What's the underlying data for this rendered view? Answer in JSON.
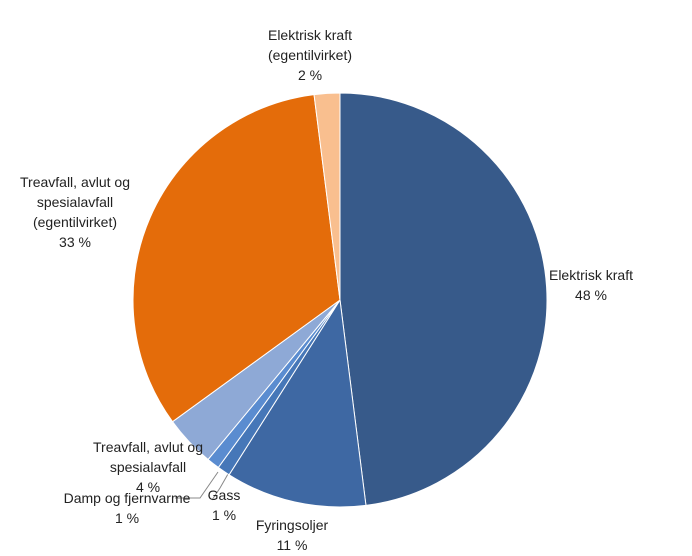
{
  "chart_data": {
    "type": "pie",
    "categories": [
      "Elektrisk kraft",
      "Fyringsoljer",
      "Gass",
      "Damp og fjernvarme",
      "Treavfall, avlut og spesialavfall",
      "Treavfall, avlut og spesialavfall (egentilvirket)",
      "Elektrisk kraft (egentilvirket)"
    ],
    "values": [
      48,
      11,
      1,
      1,
      4,
      33,
      2
    ],
    "value_labels": [
      "48 %",
      "11 %",
      "1 %",
      "1 %",
      "4 %",
      "33 %",
      "2 %"
    ],
    "colors": [
      "#375a8a",
      "#3e68a3",
      "#4677b8",
      "#5a8cd0",
      "#8ea9d6",
      "#e46c0a",
      "#f9bf8f"
    ]
  }
}
